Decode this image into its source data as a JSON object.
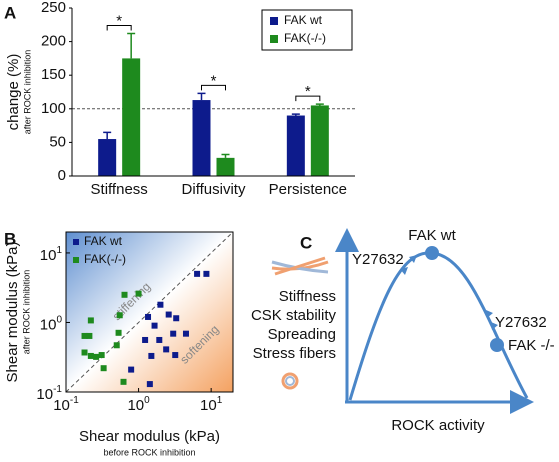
{
  "chart_data": [
    {
      "type": "bar",
      "panel_label": "A",
      "ylabel": "change (%)",
      "ylabel_sub": "after ROCK inhibition",
      "categories": [
        "Stiffness",
        "Diffusivity",
        "Persistence"
      ],
      "series": [
        {
          "name": "FAK wt",
          "color": "#0d1b8c",
          "values": [
            55,
            113,
            90
          ],
          "errors": [
            10,
            10,
            2
          ]
        },
        {
          "name": "FAK(-/-)",
          "color": "#1e8a1e",
          "values": [
            175,
            27,
            105
          ],
          "errors": [
            37,
            5,
            2
          ]
        }
      ],
      "annotations": [
        "*",
        "*",
        "*"
      ],
      "reference_line": 100,
      "ylim": [
        0,
        250
      ],
      "yticks": [
        0,
        50,
        100,
        150,
        200,
        250
      ],
      "legend": "upper right"
    },
    {
      "type": "scatter",
      "panel_label": "B",
      "xlabel": "Shear modulus (kPa)",
      "xlabel_sub": "before ROCK inhibition",
      "ylabel": "Shear modulus (kPa)",
      "ylabel_sub": "after ROCK inhibition",
      "log_scale": true,
      "xlim": [
        0.1,
        20
      ],
      "ylim": [
        0.1,
        20
      ],
      "xticks": [
        {
          "value": 0.1,
          "label": "10",
          "exponent": "-1"
        },
        {
          "value": 1,
          "label": "10",
          "exponent": "0"
        },
        {
          "value": 10,
          "label": "10",
          "exponent": "1"
        }
      ],
      "yticks": [
        {
          "value": 0.1,
          "label": "10",
          "exponent": "-1"
        },
        {
          "value": 1,
          "label": "10",
          "exponent": "0"
        },
        {
          "value": 10,
          "label": "10",
          "exponent": "1"
        }
      ],
      "annotations": [
        "stiffening",
        "softening"
      ],
      "legend": "upper left",
      "series": [
        {
          "name": "FAK wt",
          "color": "#0d1b8c",
          "x": [
            6.4,
            8.6,
            2.0,
            1.35,
            2.6,
            3.3,
            1.66,
            3.0,
            4.5,
            1.23,
            1.93,
            2.4,
            3.2,
            1.5,
            0.79,
            1.43
          ],
          "values": [
            5.0,
            5.0,
            1.8,
            1.2,
            1.3,
            1.15,
            0.9,
            0.69,
            0.69,
            0.56,
            0.56,
            0.41,
            0.34,
            0.33,
            0.21,
            0.13
          ]
        },
        {
          "name": "FAK(-/-)",
          "color": "#1e8a1e",
          "x": [
            0.22,
            0.21,
            0.18,
            0.22,
            0.26,
            0.31,
            0.5,
            0.53,
            0.55,
            0.64,
            1.0,
            0.33,
            0.62,
            0.18
          ],
          "values": [
            1.07,
            0.64,
            0.37,
            0.33,
            0.32,
            0.34,
            0.47,
            0.71,
            1.27,
            2.5,
            2.6,
            0.22,
            0.14,
            0.64
          ]
        }
      ]
    }
  ],
  "diagram": {
    "panel_label": "C",
    "xlabel": "ROCK activity",
    "properties": [
      "Stiffness",
      "CSK stability",
      "Spreading",
      "Stress fibers"
    ],
    "points": [
      "FAK wt",
      "FAK -/-"
    ],
    "treatments": [
      "Y27632",
      "Y27632"
    ]
  }
}
